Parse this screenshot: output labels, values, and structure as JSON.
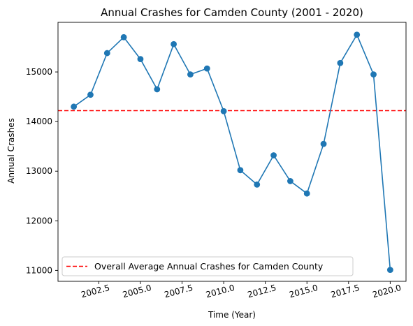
{
  "chart_data": {
    "type": "line",
    "title": "Annual Crashes for Camden County (2001 - 2020)",
    "xlabel": "Time (Year)",
    "ylabel": "Annual Crashes",
    "xlim": [
      2000.05,
      2020.95
    ],
    "ylim": [
      10780,
      16000
    ],
    "x_ticks": [
      2002.5,
      2005.0,
      2007.5,
      2010.0,
      2012.5,
      2015.0,
      2017.5,
      2020.0
    ],
    "x_tick_labels": [
      "2002.5",
      "2005.0",
      "2007.5",
      "2010.0",
      "2012.5",
      "2015.0",
      "2017.5",
      "2020.0"
    ],
    "y_ticks": [
      11000,
      12000,
      13000,
      14000,
      15000
    ],
    "y_tick_labels": [
      "11000",
      "12000",
      "13000",
      "14000",
      "15000"
    ],
    "grid": false,
    "legend_position": "bottom-left",
    "series": [
      {
        "x": [
          2001,
          2002,
          2003,
          2004,
          2005,
          2006,
          2007,
          2008,
          2009,
          2010,
          2011,
          2012,
          2013,
          2014,
          2015,
          2016,
          2017,
          2018,
          2019,
          2020
        ],
        "values": [
          14300,
          14540,
          15380,
          15700,
          15260,
          14650,
          15560,
          14950,
          15070,
          14210,
          13020,
          12730,
          13320,
          12800,
          12550,
          13550,
          15180,
          15750,
          14950,
          11010
        ],
        "color": "#1f77b4",
        "marker": "circle"
      }
    ],
    "reference_lines": [
      {
        "name": "Overall Average Annual Crashes for Camden County",
        "value": 14220,
        "color": "#ff0000",
        "style": "dashed"
      }
    ]
  }
}
